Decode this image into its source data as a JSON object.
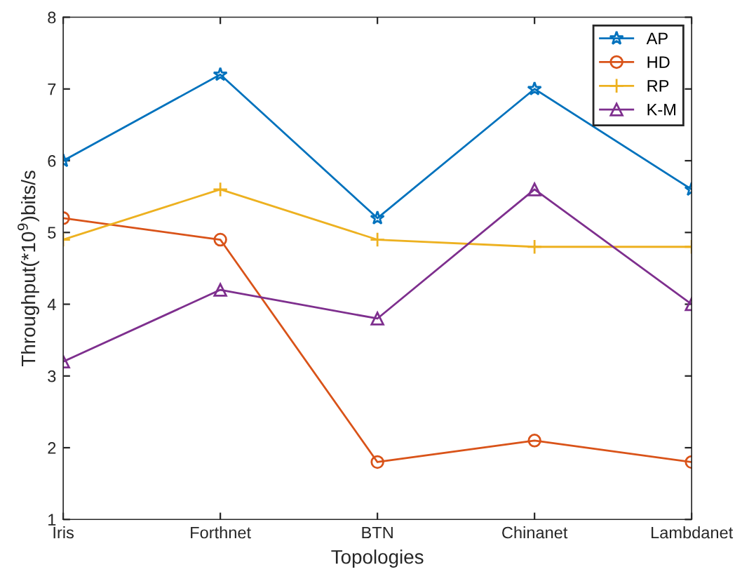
{
  "chart_data": {
    "type": "line",
    "xlabel": "Topologies",
    "ylabel": "Throughput(*10$^{9}$)bits/s",
    "categories": [
      "Iris",
      "Forthnet",
      "BTN",
      "Chinanet",
      "Lambdanet"
    ],
    "series": [
      {
        "name": "AP",
        "color": "#0072bd",
        "marker": "star",
        "values": [
          6.0,
          7.2,
          5.2,
          7.0,
          5.6
        ]
      },
      {
        "name": "HD",
        "color": "#d95319",
        "marker": "circle",
        "values": [
          5.2,
          4.9,
          1.8,
          2.1,
          1.8
        ]
      },
      {
        "name": "RP",
        "color": "#edb120",
        "marker": "cross",
        "values": [
          4.9,
          5.6,
          4.9,
          4.8,
          4.8
        ]
      },
      {
        "name": "K-M",
        "color": "#7e2f8e",
        "marker": "triangle",
        "values": [
          3.2,
          4.2,
          3.8,
          5.6,
          4.0
        ]
      }
    ],
    "ylim": [
      1,
      8
    ],
    "yticks": [
      1,
      2,
      3,
      4,
      5,
      6,
      7,
      8
    ],
    "grid": false,
    "legend": "top right",
    "line_style": "solid"
  }
}
